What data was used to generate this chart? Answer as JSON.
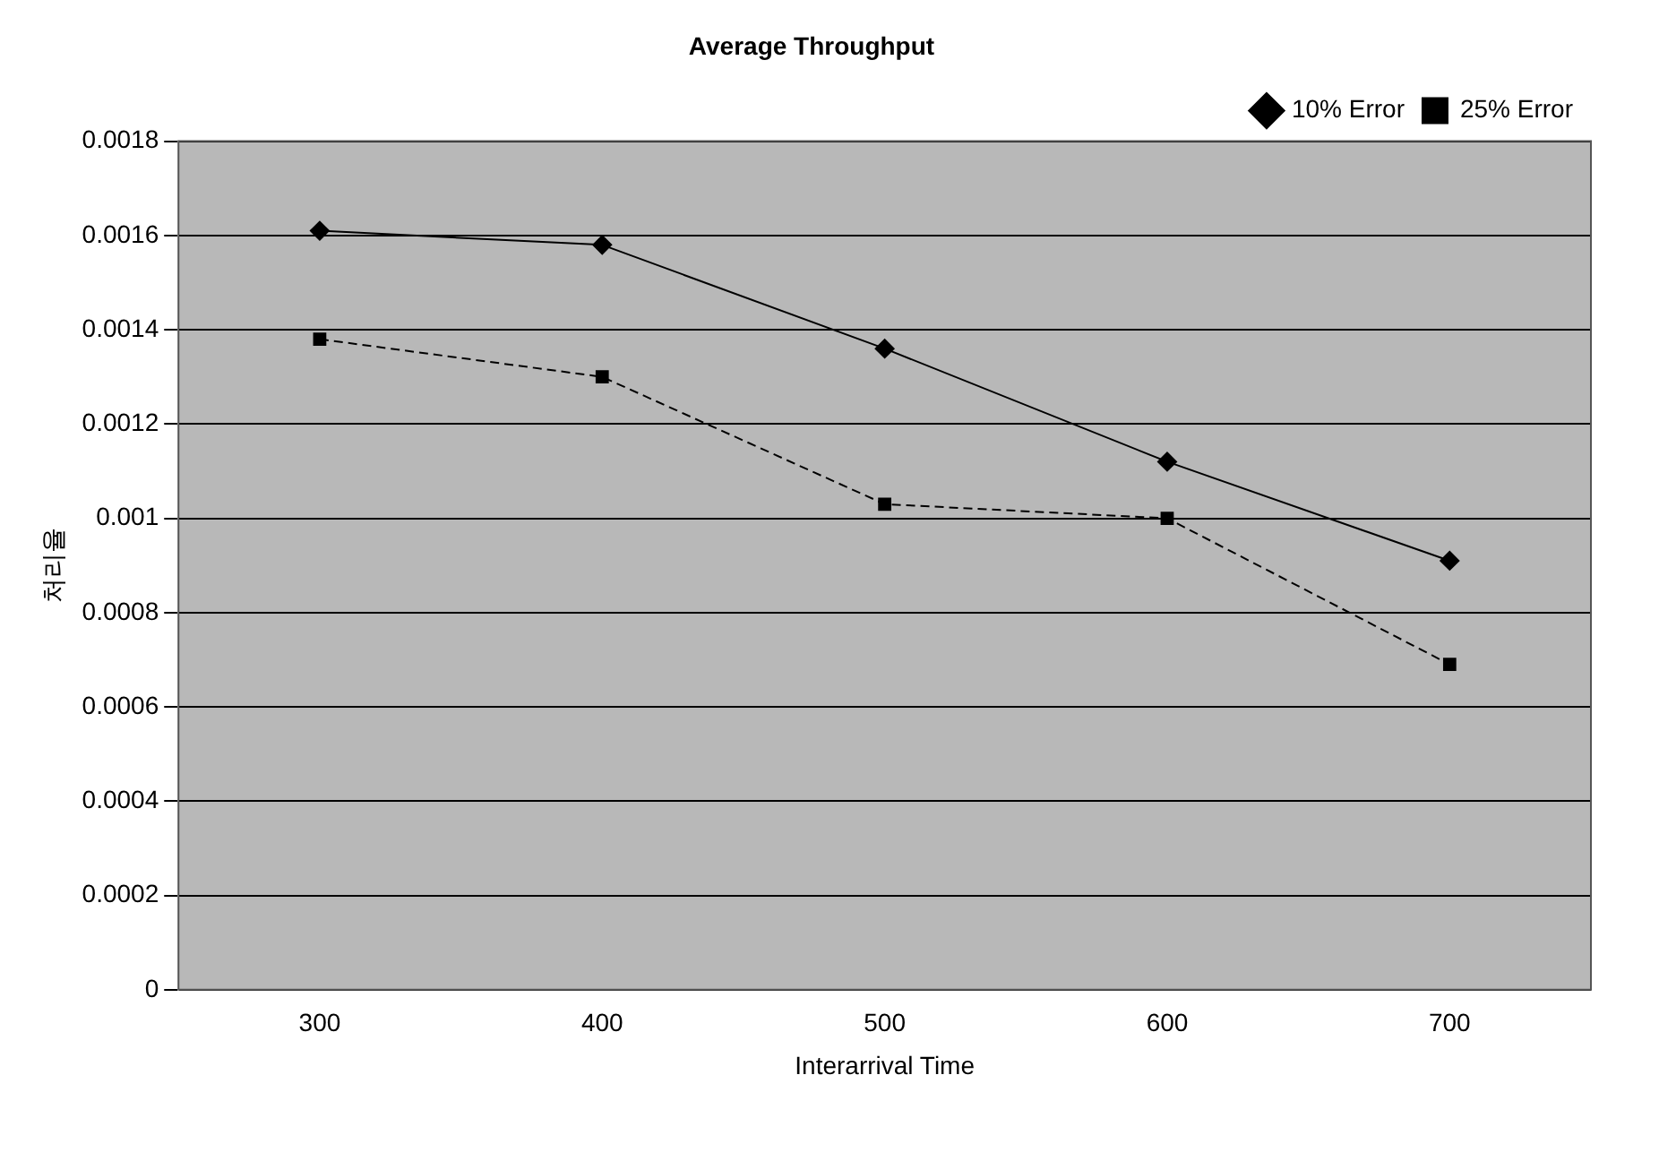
{
  "chart_data": {
    "type": "line",
    "title": "Average Throughput",
    "xlabel": "Interarrival Time",
    "ylabel": "처리율",
    "categories": [
      "300",
      "400",
      "500",
      "600",
      "700"
    ],
    "series": [
      {
        "name": "10% Error",
        "color": "#000000",
        "marker": "diamond",
        "line_style": "solid",
        "values": [
          0.00161,
          0.00158,
          0.00136,
          0.00112,
          0.00091
        ]
      },
      {
        "name": "25% Error",
        "color": "#000000",
        "marker": "square",
        "line_style": "dashed",
        "values": [
          0.00138,
          0.0013,
          0.00103,
          0.001,
          0.00069
        ]
      }
    ],
    "ylim": [
      0,
      0.0018
    ],
    "yticks": [
      0,
      0.0002,
      0.0004,
      0.0006,
      0.0008,
      0.001,
      0.0012,
      0.0014,
      0.0016,
      0.0018
    ],
    "grid": "y",
    "legend": "top right"
  }
}
